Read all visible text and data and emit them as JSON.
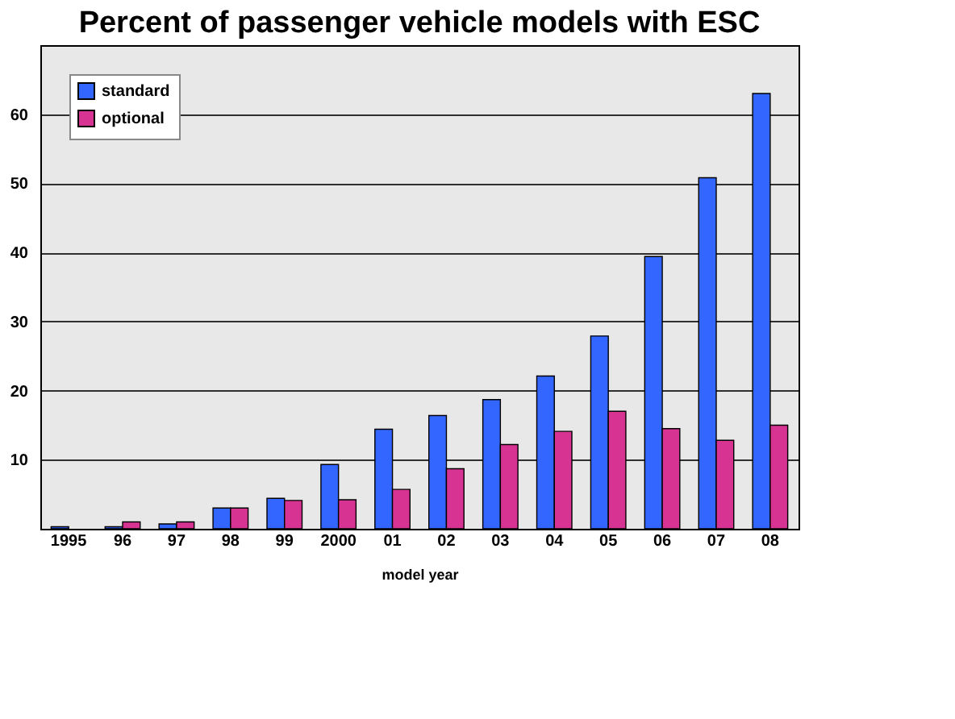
{
  "chart_data": {
    "type": "bar",
    "title": "Percent of passenger vehicle models with ESC",
    "xlabel": "model year",
    "categories": [
      "1995",
      "96",
      "97",
      "98",
      "99",
      "2000",
      "01",
      "02",
      "03",
      "04",
      "05",
      "06",
      "07",
      "08"
    ],
    "series": [
      {
        "name": "standard",
        "color": "#3366ff",
        "values": [
          0.3,
          0.3,
          0.7,
          3.0,
          4.4,
          9.3,
          14.4,
          16.4,
          18.7,
          22.1,
          27.9,
          39.4,
          50.8,
          63.0
        ]
      },
      {
        "name": "optional",
        "color": "#d63392",
        "values": [
          null,
          1.0,
          1.0,
          3.0,
          4.1,
          4.2,
          5.7,
          8.7,
          12.2,
          14.1,
          17.0,
          14.5,
          12.8,
          15.0
        ]
      }
    ],
    "ylim": [
      0,
      70
    ],
    "yticks": [
      10,
      20,
      30,
      40,
      50,
      60
    ],
    "grid": "y",
    "legend": "top left"
  }
}
